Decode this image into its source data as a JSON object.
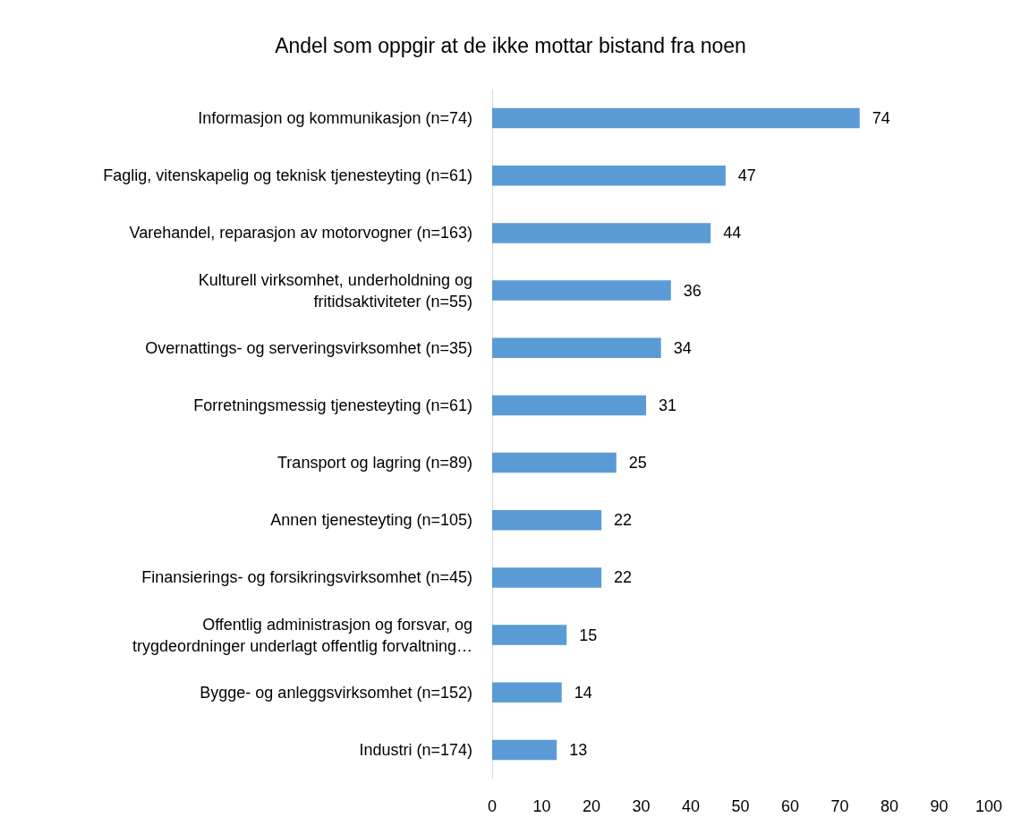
{
  "chart_data": {
    "type": "bar",
    "orientation": "horizontal",
    "title": "Andel som oppgir at de ikke mottar bistand fra noen",
    "categories": [
      "Informasjon og kommunikasjon (n=74)",
      "Faglig, vitenskapelig og teknisk tjenesteyting (n=61)",
      "Varehandel, reparasjon av motorvogner (n=163)",
      "Kulturell virksomhet, underholdning og\nfritidsaktiviteter (n=55)",
      "Overnattings- og serveringsvirksomhet (n=35)",
      "Forretningsmessig tjenesteyting (n=61)",
      "Transport og lagring (n=89)",
      "Annen tjenesteyting (n=105)",
      "Finansierings- og forsikringsvirksomhet (n=45)",
      "Offentlig administrasjon og forsvar, og\ntrygdeordninger underlagt offentlig forvaltning…",
      "Bygge- og anleggsvirksomhet (n=152)",
      "Industri (n=174)"
    ],
    "values": [
      74,
      47,
      44,
      36,
      34,
      31,
      25,
      22,
      22,
      15,
      14,
      13
    ],
    "color": "#5b9bd5",
    "xlim": [
      0,
      100
    ],
    "xticks": [
      0,
      10,
      20,
      30,
      40,
      50,
      60,
      70,
      80,
      90,
      100
    ],
    "data_labels": true,
    "grid": false
  }
}
